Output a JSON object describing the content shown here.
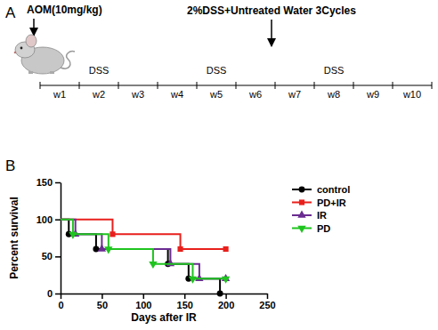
{
  "panels": [
    "A",
    "B"
  ],
  "diagram": {
    "treatment": "AOM(10mg/kg)",
    "regimen": "2%DSS+Untreated Water 3Cycles",
    "weeks": [
      "w1",
      "w2",
      "w3",
      "w4",
      "w5",
      "w6",
      "w7",
      "w8",
      "w9",
      "w10"
    ],
    "dss": [
      false,
      true,
      false,
      false,
      true,
      false,
      false,
      true,
      false,
      false
    ],
    "dss_label": "DSS"
  },
  "chart_data": {
    "type": "step",
    "xlabel": "Days after IR",
    "ylabel": "Percent survival",
    "xlim": [
      0,
      250
    ],
    "ylim": [
      0,
      150
    ],
    "xticks": [
      0,
      50,
      100,
      150,
      200,
      250
    ],
    "yticks": [
      0,
      50,
      100,
      150
    ],
    "legend": "right",
    "series": [
      {
        "name": "control",
        "color": "#000000",
        "marker": "circle",
        "x": [
          0,
          10,
          43,
          130,
          155,
          193
        ],
        "values": [
          100,
          80,
          60,
          40,
          20,
          0
        ]
      },
      {
        "name": "PD+IR",
        "color": "#e8201c",
        "marker": "square",
        "x": [
          0,
          63,
          145,
          200
        ],
        "values": [
          100,
          80,
          60,
          60
        ]
      },
      {
        "name": "IR",
        "color": "#6a2c91",
        "marker": "triangle-up",
        "x": [
          0,
          18,
          50,
          133,
          168,
          200
        ],
        "values": [
          100,
          80,
          60,
          40,
          20,
          20
        ]
      },
      {
        "name": "PD",
        "color": "#1fc41f",
        "marker": "triangle-down",
        "x": [
          0,
          15,
          58,
          112,
          160,
          200
        ],
        "values": [
          100,
          80,
          60,
          40,
          20,
          20
        ]
      }
    ]
  }
}
